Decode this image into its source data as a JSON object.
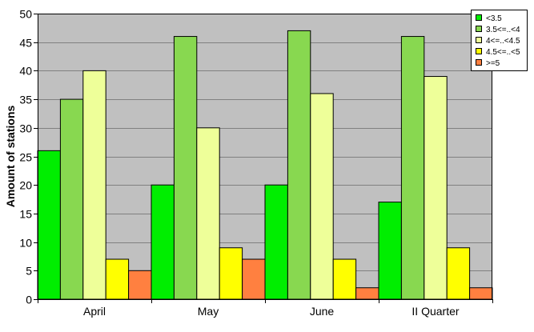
{
  "chart_data": {
    "type": "bar",
    "categories": [
      "April",
      "May",
      "June",
      "II Quarter"
    ],
    "series": [
      {
        "name": "<3.5",
        "color": "#00ee00",
        "values": [
          26,
          20,
          20,
          17
        ]
      },
      {
        "name": "3.5<=..<4",
        "color": "#88d850",
        "values": [
          35,
          46,
          47,
          46
        ]
      },
      {
        "name": "4<=..<4.5",
        "color": "#eeff99",
        "values": [
          40,
          30,
          36,
          39
        ]
      },
      {
        "name": "4.5<=..<5",
        "color": "#ffff00",
        "values": [
          7,
          9,
          7,
          9
        ]
      },
      {
        "name": ">=5",
        "color": "#ff8040",
        "values": [
          5,
          7,
          2,
          2
        ]
      }
    ],
    "xlabel": "",
    "ylabel": "Amount of stations",
    "ylim": [
      0,
      50
    ],
    "yticks": [
      0,
      5,
      10,
      15,
      20,
      25,
      30,
      35,
      40,
      45,
      50
    ],
    "grid": true,
    "legend_position": "top-right",
    "plot_background": "#c0c0c0"
  }
}
